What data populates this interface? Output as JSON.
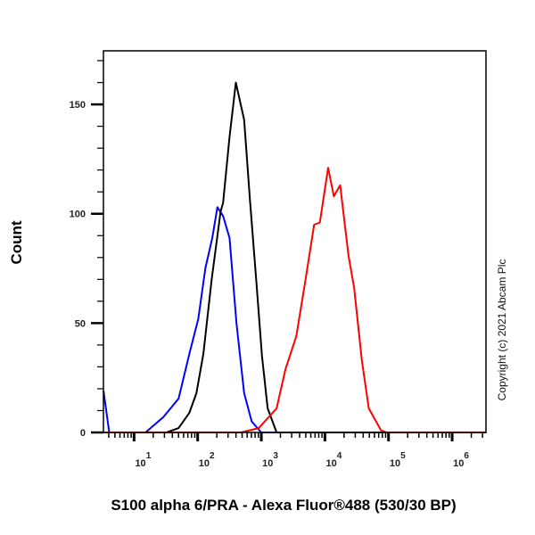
{
  "chart_data": {
    "type": "line",
    "xlabel": "S100 alpha 6/PRA - Alexa Fluor®488 (530/30 BP)",
    "ylabel": "Count",
    "x_scale": "log",
    "xlim": [
      3.3,
      3400000
    ],
    "ylim": [
      0,
      174.5
    ],
    "x_ticks": [
      {
        "base": "10",
        "exp": "1"
      },
      {
        "base": "10",
        "exp": "2"
      },
      {
        "base": "10",
        "exp": "3"
      },
      {
        "base": "10",
        "exp": "4"
      },
      {
        "base": "10",
        "exp": "5"
      },
      {
        "base": "10",
        "exp": "6"
      }
    ],
    "y_ticks": [
      "0",
      "50",
      "100",
      "150"
    ],
    "grid": false,
    "annotation": "Copyright (c) 2021 Abcam Plc",
    "series": [
      {
        "color": "#0000ff",
        "points_log10x": [
          [
            0.52,
            19
          ],
          [
            0.61,
            0
          ],
          [
            1.0,
            0
          ],
          [
            1.18,
            0
          ],
          [
            1.46,
            7
          ],
          [
            1.7,
            15.5
          ],
          [
            1.87,
            36
          ],
          [
            2.01,
            52
          ],
          [
            2.12,
            75
          ],
          [
            2.23,
            89
          ],
          [
            2.31,
            103
          ],
          [
            2.4,
            99
          ],
          [
            2.5,
            89
          ],
          [
            2.61,
            50
          ],
          [
            2.73,
            18
          ],
          [
            2.85,
            5
          ],
          [
            3.0,
            0
          ],
          [
            6.53,
            0
          ]
        ]
      },
      {
        "color": "#000000",
        "points_log10x": [
          [
            0.52,
            0
          ],
          [
            1.51,
            0
          ],
          [
            1.7,
            2
          ],
          [
            1.87,
            9
          ],
          [
            1.98,
            18
          ],
          [
            2.09,
            36
          ],
          [
            2.22,
            70
          ],
          [
            2.36,
            101
          ],
          [
            2.4,
            105
          ],
          [
            2.5,
            135
          ],
          [
            2.6,
            160
          ],
          [
            2.73,
            143
          ],
          [
            2.82,
            107
          ],
          [
            2.92,
            70
          ],
          [
            3.01,
            35
          ],
          [
            3.1,
            11
          ],
          [
            3.24,
            0
          ],
          [
            6.53,
            0
          ]
        ]
      },
      {
        "color": "#ff0000",
        "points_log10x": [
          [
            0.52,
            0
          ],
          [
            2.68,
            0
          ],
          [
            2.96,
            2
          ],
          [
            3.24,
            11
          ],
          [
            3.38,
            29
          ],
          [
            3.55,
            44
          ],
          [
            3.69,
            69
          ],
          [
            3.83,
            95
          ],
          [
            3.92,
            96
          ],
          [
            4.05,
            121
          ],
          [
            4.14,
            108
          ],
          [
            4.24,
            113
          ],
          [
            4.37,
            81
          ],
          [
            4.46,
            66
          ],
          [
            4.58,
            33
          ],
          [
            4.69,
            11
          ],
          [
            4.88,
            1
          ],
          [
            4.97,
            0
          ],
          [
            6.53,
            0
          ]
        ]
      }
    ]
  }
}
